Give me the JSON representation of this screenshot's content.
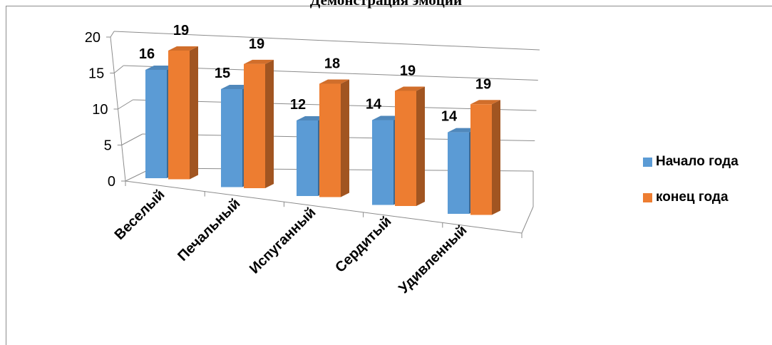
{
  "chart_data": {
    "type": "bar",
    "title": "Демонстрация эмоций",
    "categories": [
      "Веселый",
      "Печальный",
      "Испуганный",
      "Сердитый",
      "Удивленный"
    ],
    "series": [
      {
        "name": "Начало года",
        "values": [
          16,
          15,
          12,
          14,
          14
        ],
        "color": "#5b9bd5"
      },
      {
        "name": "конец года",
        "values": [
          19,
          19,
          18,
          19,
          19
        ],
        "color": "#ed7d31"
      }
    ],
    "yticks": [
      "0",
      "5",
      "10",
      "15",
      "20"
    ],
    "ylim": [
      0,
      20
    ],
    "grid": true,
    "legend": "right",
    "three_d": true
  }
}
